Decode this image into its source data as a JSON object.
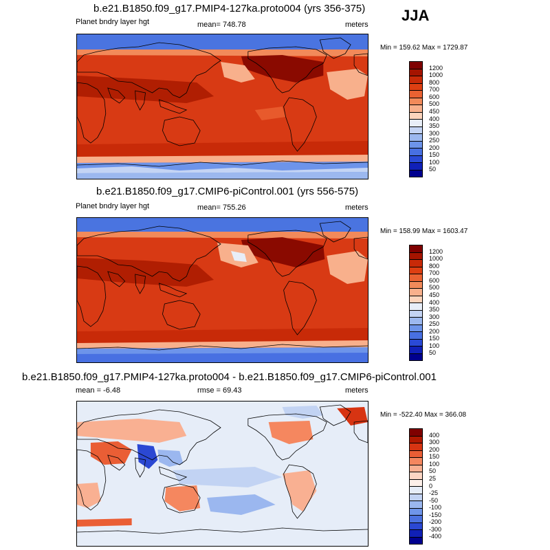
{
  "season_label": "JJA",
  "panels": [
    {
      "title": "b.e21.B1850.f09_g17.PMIP4-127ka.proto004 (yrs 356-375)",
      "left_label": "Planet bndry layer hgt",
      "center_label": "mean= 748.78",
      "right_label": "meters",
      "minmax": "Min = 159.62 Max = 1729.87",
      "colorbar": {
        "labels": [
          "1200",
          "1000",
          "800",
          "700",
          "600",
          "500",
          "450",
          "400",
          "350",
          "300",
          "250",
          "200",
          "150",
          "100",
          "50"
        ],
        "colors": [
          "#7f0000",
          "#a51400",
          "#c82a08",
          "#de3f12",
          "#ea6232",
          "#f28a5a",
          "#f8b08c",
          "#fcd4bc",
          "#e8eef8",
          "#c4d4f4",
          "#9cb8ef",
          "#6d94ea",
          "#4870e2",
          "#2a4ad6",
          "#1020b8",
          "#00008f"
        ]
      }
    },
    {
      "title": "b.e21.B1850.f09_g17.CMIP6-piControl.001 (yrs 556-575)",
      "left_label": "Planet bndry layer hgt",
      "center_label": "mean= 755.26",
      "right_label": "meters",
      "minmax": "Min = 158.99 Max = 1603.47",
      "colorbar": {
        "labels": [
          "1200",
          "1000",
          "800",
          "700",
          "600",
          "500",
          "450",
          "400",
          "350",
          "300",
          "250",
          "200",
          "150",
          "100",
          "50"
        ],
        "colors": [
          "#7f0000",
          "#a51400",
          "#c82a08",
          "#de3f12",
          "#ea6232",
          "#f28a5a",
          "#f8b08c",
          "#fcd4bc",
          "#e8eef8",
          "#c4d4f4",
          "#9cb8ef",
          "#6d94ea",
          "#4870e2",
          "#2a4ad6",
          "#1020b8",
          "#00008f"
        ]
      }
    },
    {
      "title": "b.e21.B1850.f09_g17.PMIP4-127ka.proto004 - b.e21.B1850.f09_g17.CMIP6-piControl.001",
      "left_label": "mean =  -6.48",
      "center_label": "rmse =  69.43",
      "right_label": "meters",
      "minmax": "Min = -522.40 Max = 366.08",
      "colorbar": {
        "labels": [
          "400",
          "300",
          "200",
          "150",
          "100",
          "50",
          "25",
          "0",
          "-25",
          "-50",
          "-100",
          "-150",
          "-200",
          "-300",
          "-400"
        ],
        "colors": [
          "#7f0000",
          "#b01800",
          "#d73412",
          "#ea5e35",
          "#f5875f",
          "#f9b092",
          "#fcd6c4",
          "#fdf0ea",
          "#e6edf8",
          "#c2d3f3",
          "#9bb7ef",
          "#6f95ea",
          "#4b71e0",
          "#2b48d3",
          "#1020b6",
          "#00008f"
        ]
      }
    }
  ]
}
